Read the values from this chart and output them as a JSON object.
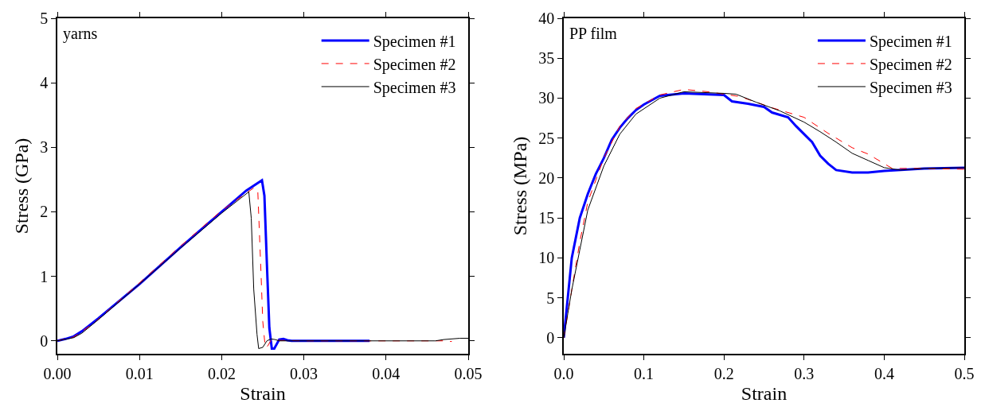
{
  "chart_data": [
    {
      "type": "line",
      "xlabel": "Strain",
      "ylabel": "Stress (GPa)",
      "annotations": [
        "yarns"
      ],
      "xlim": [
        0,
        0.05
      ],
      "ylim": [
        -0.2,
        5
      ],
      "xticks": [
        {
          "value": 0,
          "label": "0.00"
        },
        {
          "value": 0.01,
          "label": "0.01"
        },
        {
          "value": 0.02,
          "label": "0.02"
        },
        {
          "value": 0.03,
          "label": "0.03"
        },
        {
          "value": 0.04,
          "label": "0.04"
        },
        {
          "value": 0.05,
          "label": "0.05"
        }
      ],
      "yticks": [
        0,
        1,
        2,
        3,
        4,
        5
      ],
      "grid": false,
      "legend": "top right",
      "marker": "none",
      "series": [
        {
          "name": "Specimen #1",
          "color": "#0000ff",
          "line_style": "solid",
          "x": [
            0,
            0.001,
            0.002,
            0.003,
            0.005,
            0.01,
            0.015,
            0.02,
            0.023,
            0.0249,
            0.0252,
            0.0255,
            0.0258,
            0.0261,
            0.0264,
            0.027,
            0.0275,
            0.028,
            0.0285,
            0.038
          ],
          "values": [
            0,
            0.03,
            0.07,
            0.15,
            0.35,
            0.88,
            1.45,
            2.0,
            2.33,
            2.49,
            2.25,
            1.2,
            0.2,
            -0.12,
            -0.12,
            0.02,
            0.03,
            0.01,
            0,
            0
          ]
        },
        {
          "name": "Specimen #2",
          "color": "#ff0000",
          "line_style": "dashed",
          "x": [
            0,
            0.002,
            0.0045,
            0.01,
            0.015,
            0.02,
            0.024,
            0.0244,
            0.0248,
            0.025,
            0.0253,
            0.0256,
            0.026,
            0.03,
            0.047,
            0.048
          ],
          "values": [
            0,
            0.06,
            0.28,
            0.9,
            1.47,
            2.02,
            2.38,
            2.3,
            1.0,
            0.3,
            -0.1,
            -0.08,
            0.01,
            0,
            0,
            -0.01
          ]
        },
        {
          "name": "Specimen #3",
          "color": "#000000",
          "line_style": "solid",
          "x": [
            0,
            0.002,
            0.003,
            0.005,
            0.01,
            0.015,
            0.02,
            0.0233,
            0.0236,
            0.0239,
            0.0243,
            0.0245,
            0.025,
            0.0255,
            0.026,
            0.0265,
            0.027,
            0.046,
            0.047,
            0.049,
            0.05
          ],
          "values": [
            0,
            0.05,
            0.12,
            0.33,
            0.88,
            1.44,
            1.98,
            2.31,
            1.9,
            0.8,
            0.1,
            -0.12,
            -0.1,
            0,
            0.03,
            0.02,
            0,
            0,
            0.02,
            0.04,
            0.04
          ]
        }
      ]
    },
    {
      "type": "line",
      "xlabel": "Strain",
      "ylabel": "Stress (MPa)",
      "annotations": [
        "PP film"
      ],
      "xlim": [
        0,
        0.5
      ],
      "ylim": [
        -2,
        40
      ],
      "xticks": [
        {
          "value": 0,
          "label": "0.0"
        },
        0.1,
        0.2,
        0.3,
        0.4,
        0.5
      ],
      "yticks": [
        0,
        5,
        10,
        15,
        20,
        25,
        30,
        35,
        40
      ],
      "grid": false,
      "legend": "top right",
      "marker": "none",
      "series": [
        {
          "name": "Specimen #1",
          "color": "#0000ff",
          "line_style": "solid",
          "x": [
            0,
            0.005,
            0.01,
            0.02,
            0.03,
            0.04,
            0.05,
            0.06,
            0.07,
            0.08,
            0.09,
            0.1,
            0.12,
            0.15,
            0.2,
            0.21,
            0.23,
            0.25,
            0.26,
            0.28,
            0.29,
            0.31,
            0.32,
            0.33,
            0.34,
            0.36,
            0.38,
            0.4,
            0.45,
            0.5
          ],
          "values": [
            0,
            5,
            10,
            15,
            18,
            20.5,
            22.5,
            24.8,
            26.3,
            27.5,
            28.5,
            29.2,
            30.3,
            30.6,
            30.4,
            29.6,
            29.3,
            28.9,
            28.2,
            27.6,
            26.5,
            24.5,
            22.8,
            21.8,
            21.0,
            20.7,
            20.7,
            20.9,
            21.2,
            21.3
          ]
        },
        {
          "name": "Specimen #2",
          "color": "#ff0000",
          "line_style": "dashed",
          "x": [
            0,
            0.005,
            0.01,
            0.02,
            0.03,
            0.05,
            0.07,
            0.09,
            0.12,
            0.15,
            0.18,
            0.22,
            0.26,
            0.3,
            0.33,
            0.36,
            0.38,
            0.4,
            0.41,
            0.45,
            0.5
          ],
          "values": [
            0,
            3,
            6,
            12,
            17,
            22.5,
            26.5,
            28.7,
            30.4,
            31.1,
            30.8,
            30.2,
            28.8,
            27.6,
            25.6,
            23.8,
            23.0,
            21.8,
            21.2,
            21.2,
            21.1
          ]
        },
        {
          "name": "Specimen #3",
          "color": "#000000",
          "line_style": "solid",
          "x": [
            0,
            0.005,
            0.01,
            0.02,
            0.03,
            0.05,
            0.07,
            0.09,
            0.12,
            0.15,
            0.2,
            0.215,
            0.24,
            0.27,
            0.3,
            0.32,
            0.34,
            0.36,
            0.38,
            0.4,
            0.42,
            0.45,
            0.5
          ],
          "values": [
            0,
            3,
            6,
            11,
            16,
            21.5,
            25.5,
            28,
            30,
            30.8,
            30.6,
            30.5,
            29.5,
            28.4,
            27,
            25.8,
            24.5,
            23.1,
            22.2,
            21.3,
            21.0,
            21.2,
            21.3
          ]
        }
      ]
    }
  ]
}
